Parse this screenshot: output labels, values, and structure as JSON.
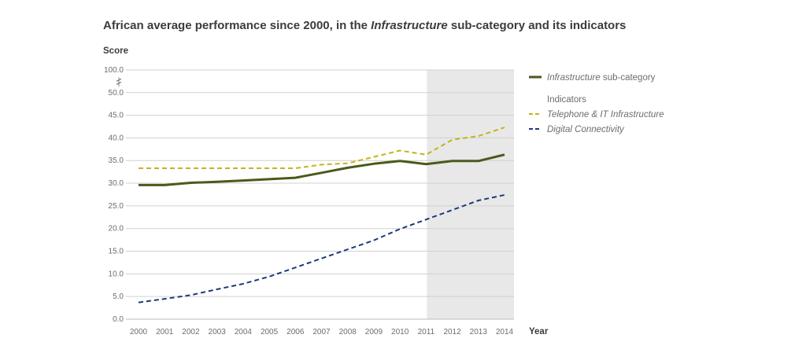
{
  "title": {
    "prefix": "African average performance since 2000, in the ",
    "italic": "Infrastructure",
    "suffix": " sub-category and its indicators"
  },
  "chart_data": {
    "type": "line",
    "title": "African average performance since 2000, in the Infrastructure sub-category and its indicators",
    "ylabel": "Score",
    "xlabel": "Year",
    "x": [
      2000,
      2001,
      2002,
      2003,
      2004,
      2005,
      2006,
      2007,
      2008,
      2009,
      2010,
      2011,
      2012,
      2013,
      2014
    ],
    "y_ticks": [
      "0.0",
      "5.0",
      "10.0",
      "15.0",
      "20.0",
      "25.0",
      "30.0",
      "35.0",
      "40.0",
      "45.0",
      "50.0",
      "100.0"
    ],
    "ylim": [
      0,
      100
    ],
    "y_axis_break": [
      50,
      100
    ],
    "grid": true,
    "shaded_region": {
      "from": 2011,
      "to": 2014
    },
    "legend_position": "right",
    "series": [
      {
        "name_italic": "Infrastructure",
        "name_suffix": " sub-category",
        "style": "solid",
        "color": "#4a5a1c",
        "values": [
          29.6,
          29.6,
          30.1,
          30.3,
          30.6,
          30.9,
          31.2,
          32.3,
          33.4,
          34.3,
          34.9,
          34.2,
          34.9,
          34.9,
          36.3
        ]
      },
      {
        "name": "Telephone & IT Infrastructure",
        "style": "dashed",
        "color": "#c8b21e",
        "values": [
          33.3,
          33.3,
          33.3,
          33.3,
          33.3,
          33.3,
          33.3,
          34.1,
          34.4,
          35.8,
          37.2,
          36.3,
          39.6,
          40.4,
          42.3
        ]
      },
      {
        "name": "Digital Connectivity",
        "style": "dashed",
        "color": "#1c3a7a",
        "values": [
          3.7,
          4.5,
          5.3,
          6.6,
          7.8,
          9.4,
          11.4,
          13.4,
          15.4,
          17.4,
          19.9,
          22.0,
          24.1,
          26.2,
          27.4
        ]
      }
    ]
  },
  "legend": {
    "indicators_heading": "Indicators"
  }
}
